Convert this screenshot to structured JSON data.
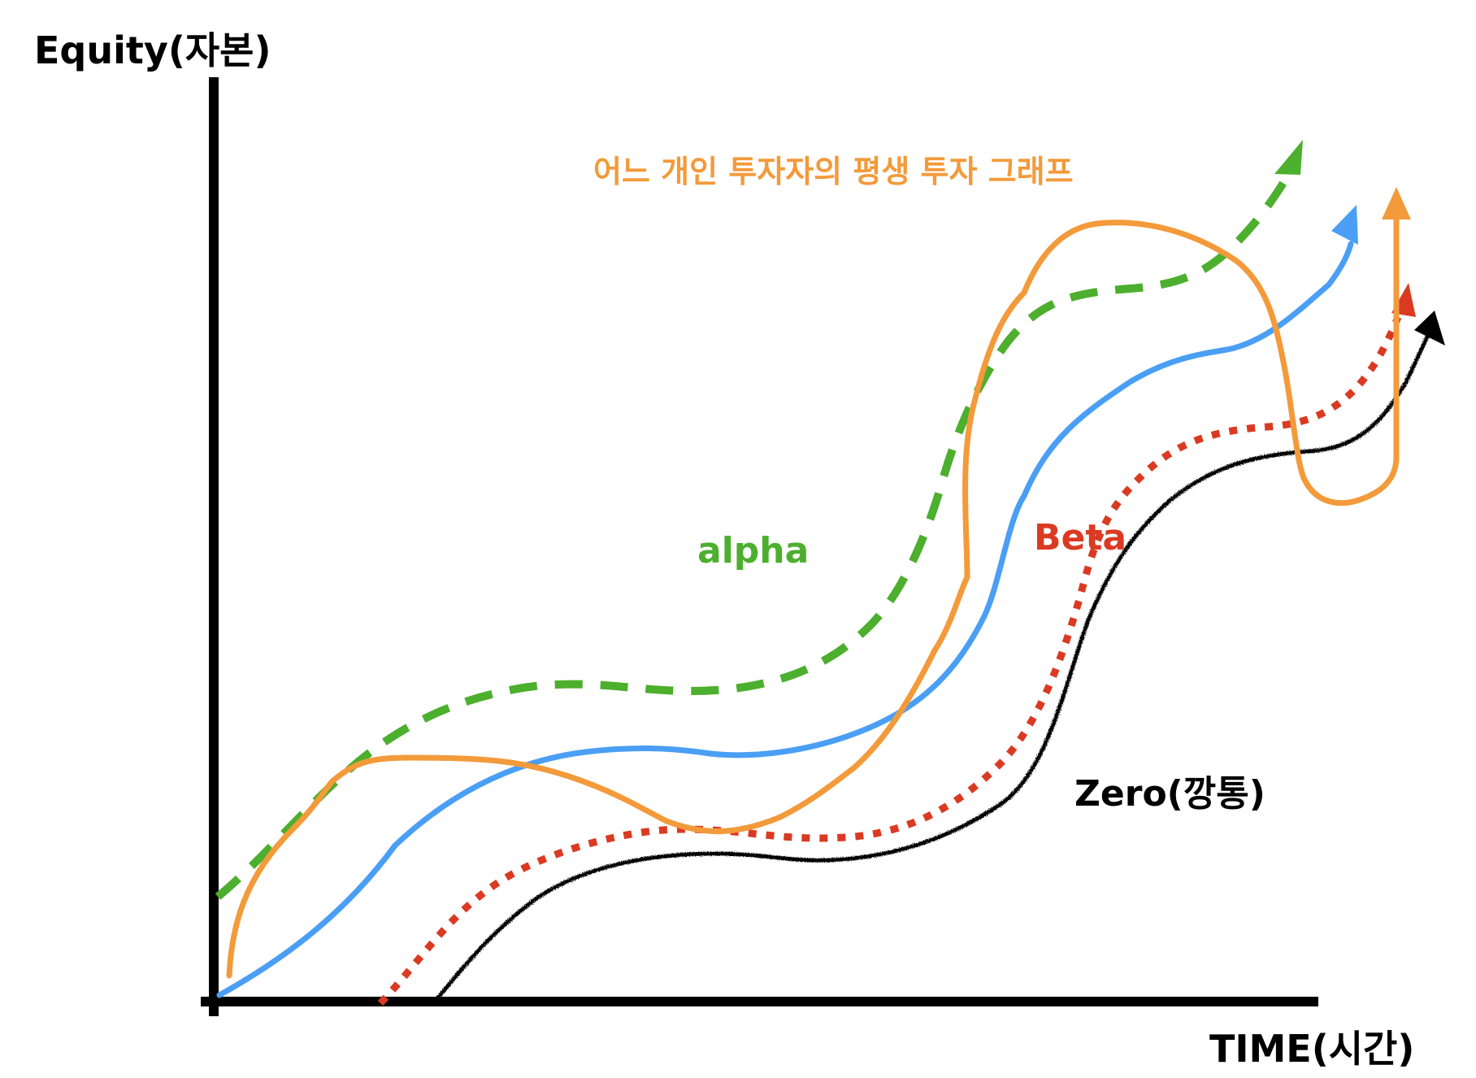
{
  "axes": {
    "y_label": "Equity(자본)",
    "x_label": "TIME(시간)"
  },
  "title": "어느 개인 투자자의 평생 투자 그래프",
  "lines": {
    "alpha": {
      "label": "alpha",
      "color": "#4caf2d",
      "style": "dashed"
    },
    "beta": {
      "label": "Beta",
      "color": "#db3a22",
      "style": "dotted"
    },
    "zero": {
      "label": "Zero(깡통)",
      "color": "#000000",
      "style": "rough"
    },
    "market": {
      "color": "#4a9ff5",
      "style": "solid"
    },
    "investor": {
      "color": "#f39a3a",
      "style": "solid"
    }
  }
}
